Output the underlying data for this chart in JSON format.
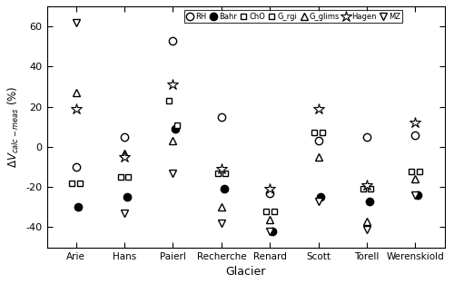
{
  "glaciers": [
    "Arie",
    "Hans",
    "Paierl",
    "Recherche",
    "Renard",
    "Scott",
    "Torell",
    "Werenskiold"
  ],
  "methods": [
    "RH",
    "Bahr",
    "ChO",
    "G_rgi",
    "G_glims",
    "Hagen",
    "MZ"
  ],
  "values": {
    "RH": [
      -10,
      5,
      53,
      15,
      -23,
      3,
      5,
      6
    ],
    "Bahr": [
      -30,
      -25,
      9,
      -21,
      -42,
      -25,
      -27,
      -24
    ],
    "ChO": [
      -18,
      -15,
      23,
      -13,
      -32,
      7,
      -21,
      -12
    ],
    "G_rgi": [
      -18,
      -15,
      11,
      -13,
      -32,
      7,
      -21,
      -12
    ],
    "G_glims": [
      27,
      -3,
      3,
      -30,
      -36,
      -5,
      -37,
      -16
    ],
    "Hagen": [
      19,
      -5,
      31,
      -11,
      -21,
      19,
      -19,
      12
    ],
    "MZ": [
      62,
      -33,
      -13,
      -38,
      -42,
      -27,
      -41,
      -24
    ]
  },
  "offsets": {
    "RH": 0.0,
    "Bahr": 0.05,
    "ChO": -0.08,
    "G_rgi": 0.08,
    "G_glims": 0.0,
    "Hagen": 0.0,
    "MZ": 0.0
  },
  "marker_defs": {
    "RH": {
      "marker": "o",
      "mfc": "white",
      "mec": "black",
      "ms": 6,
      "mew": 1.0
    },
    "Bahr": {
      "marker": "o",
      "mfc": "black",
      "mec": "black",
      "ms": 6,
      "mew": 1.0
    },
    "ChO": {
      "marker": "s",
      "mfc": "white",
      "mec": "black",
      "ms": 5,
      "mew": 1.0
    },
    "G_rgi": {
      "marker": "s",
      "mfc": "white",
      "mec": "black",
      "ms": 5,
      "mew": 1.0
    },
    "G_glims": {
      "marker": "^",
      "mfc": "white",
      "mec": "black",
      "ms": 6,
      "mew": 1.0
    },
    "Hagen": {
      "marker": "*",
      "mfc": "white",
      "mec": "black",
      "ms": 9,
      "mew": 0.8
    },
    "MZ": {
      "marker": "v",
      "mfc": "white",
      "mec": "black",
      "ms": 6,
      "mew": 1.0
    }
  },
  "xlabel": "Glacier",
  "ylim": [
    -50,
    70
  ],
  "yticks": [
    -40,
    -20,
    0,
    20,
    40,
    60
  ],
  "figsize": [
    5.0,
    3.13
  ],
  "dpi": 100
}
